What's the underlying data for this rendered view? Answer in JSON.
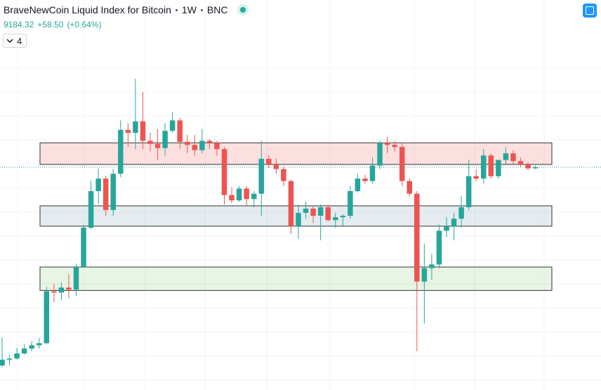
{
  "header": {
    "symbol": "BraveNewCoin Liquid Index for Bitcoin",
    "interval": "1W",
    "exchange": "BNC",
    "change": "+58.50",
    "change_pct": "(+0.64%)",
    "indicators": 4
  },
  "chart_data": {
    "type": "candlestick",
    "log_scale": true,
    "ylim": [
      3370,
      15250
    ],
    "up_color": "#26a69a",
    "down_color": "#ef5350",
    "open": [
      3600,
      3700,
      3720,
      3810,
      3900,
      3960,
      4000,
      5110,
      5080,
      5200,
      5150,
      5730,
      6900,
      8200,
      8700,
      7500,
      8900,
      10950,
      10800,
      11400,
      10400,
      10250,
      10050,
      10900,
      11450,
      10350,
      10200,
      9950,
      10400,
      10300,
      10000,
      8050,
      7850,
      8300,
      7900,
      8100,
      9550,
      9300,
      9100,
      8600,
      6950,
      7400,
      7550,
      7300,
      7600,
      7150,
      7250,
      7300,
      8200,
      8700,
      8600,
      9250,
      10300,
      10200,
      10100,
      8600,
      8100,
      5350,
      5700,
      5800,
      6800,
      6950,
      7200,
      7600,
      8800,
      8700,
      9700,
      8800,
      9500,
      9800,
      9450,
      9300,
      9130
    ],
    "high": [
      4110,
      3780,
      3910,
      3980,
      4040,
      4100,
      5220,
      5300,
      5330,
      5540,
      5820,
      6990,
      8610,
      9120,
      8820,
      9100,
      11470,
      11300,
      13940,
      13100,
      10800,
      11000,
      11300,
      11900,
      11600,
      10700,
      10700,
      11000,
      10500,
      10400,
      10100,
      8350,
      8400,
      8400,
      8200,
      10400,
      9700,
      9550,
      9200,
      8650,
      7700,
      7800,
      7650,
      7700,
      7700,
      7400,
      7350,
      8400,
      8900,
      8850,
      9600,
      10400,
      10600,
      10400,
      10300,
      8700,
      8200,
      6400,
      6100,
      7000,
      7250,
      7400,
      8000,
      9500,
      9100,
      10000,
      9800,
      9500,
      10100,
      9950,
      9600,
      9400,
      9260
    ],
    "low": [
      3570,
      3600,
      3700,
      3790,
      3850,
      3900,
      3980,
      4850,
      4900,
      4950,
      5000,
      5800,
      6850,
      7720,
      7300,
      7300,
      8760,
      10100,
      10000,
      10000,
      9900,
      9500,
      9700,
      10800,
      10000,
      9800,
      9700,
      9800,
      10000,
      9700,
      7700,
      7750,
      7800,
      7650,
      7600,
      7300,
      9150,
      8900,
      8400,
      6700,
      6550,
      7200,
      7050,
      6500,
      7100,
      6900,
      6950,
      7200,
      8150,
      8500,
      8500,
      9100,
      9800,
      9900,
      8400,
      8000,
      3850,
      4390,
      5400,
      5700,
      6600,
      6500,
      6900,
      7500,
      8600,
      8500,
      8700,
      8700,
      9300,
      9300,
      9200,
      9050,
      9100
    ],
    "close": [
      3700,
      3720,
      3810,
      3900,
      3960,
      4000,
      5110,
      5080,
      5200,
      5150,
      5730,
      6900,
      8200,
      8700,
      7500,
      8900,
      10950,
      10800,
      11400,
      10400,
      10250,
      10050,
      10900,
      11450,
      10350,
      10200,
      9950,
      10400,
      10300,
      10000,
      8050,
      7850,
      8300,
      7900,
      8100,
      9550,
      9300,
      9100,
      8600,
      6950,
      7400,
      7550,
      7300,
      7600,
      7150,
      7250,
      7300,
      8200,
      8700,
      8600,
      9250,
      10300,
      10200,
      10100,
      8600,
      8100,
      5350,
      5700,
      5800,
      6800,
      6950,
      7200,
      7600,
      8800,
      8700,
      9700,
      8800,
      9500,
      9800,
      9450,
      9300,
      9130,
      9184.32
    ],
    "zones": [
      {
        "low": 9300,
        "high": 10300,
        "color": "rgba(239,83,80,0.18)"
      },
      {
        "low": 6950,
        "high": 7650,
        "color": "rgba(120,160,180,0.2)"
      },
      {
        "low": 5130,
        "high": 5730,
        "color": "rgba(140,200,120,0.2)"
      }
    ]
  }
}
